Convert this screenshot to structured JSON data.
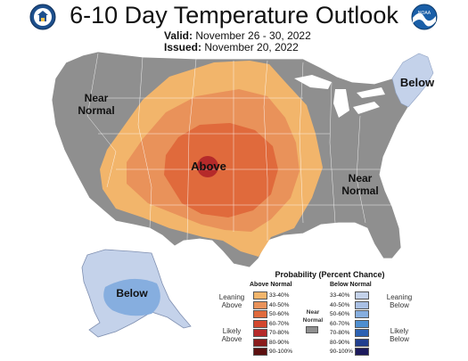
{
  "header": {
    "title": "6-10 Day Temperature Outlook",
    "valid_label": "Valid:",
    "valid_value": "November 26 - 30, 2022",
    "issued_label": "Issued:",
    "issued_value": "November 20, 2022"
  },
  "logos": {
    "left": "doc-seal",
    "right": "noaa-logo",
    "noaa_text": "NOAA"
  },
  "map_labels": {
    "near_normal_west": "Near Normal",
    "above": "Above",
    "below_ne": "Below",
    "near_normal_east": "Near Normal",
    "below_alaska": "Below"
  },
  "legend": {
    "title": "Probability (Percent Chance)",
    "above_header": "Above Normal",
    "below_header": "Below Normal",
    "near_normal": "Near Normal",
    "leaning_above": "Leaning Above",
    "likely_above": "Likely Above",
    "leaning_below": "Leaning Below",
    "likely_below": "Likely Below",
    "bins": [
      "33-40%",
      "40-50%",
      "50-60%",
      "60-70%",
      "70-80%",
      "80-90%",
      "90-100%"
    ],
    "above_colors": [
      "#f2b56b",
      "#e9925a",
      "#e06a3c",
      "#d3472e",
      "#b52a2a",
      "#8a1c1c",
      "#5c1010"
    ],
    "below_colors": [
      "#c4d2ea",
      "#a9c0e4",
      "#86aedf",
      "#4f8fd0",
      "#2d62b3",
      "#213f8f",
      "#1c1a5c"
    ],
    "near_color": "#8f8f8f"
  }
}
